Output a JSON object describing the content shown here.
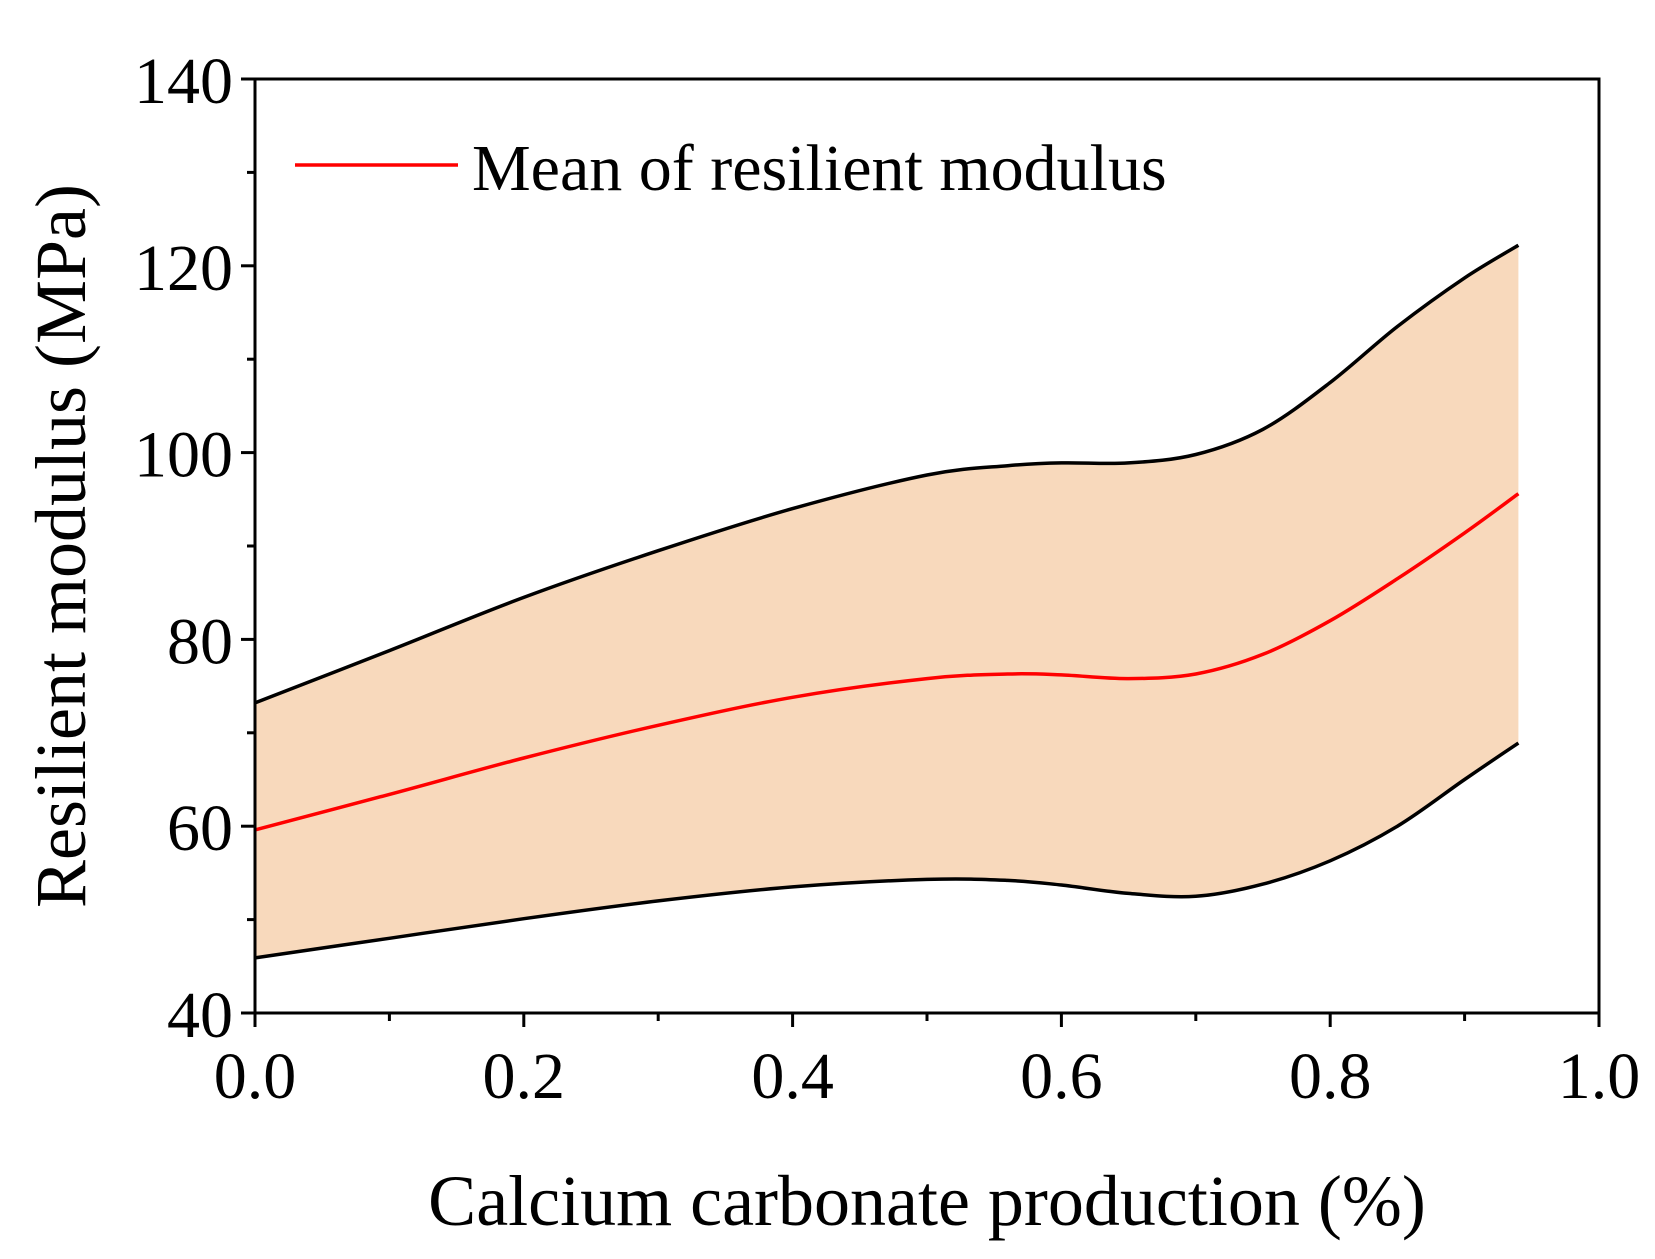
{
  "chart_data": {
    "type": "area",
    "title": "",
    "xlabel": "Calcium carbonate production (%)",
    "ylabel": "Resilient modulus (MPa)",
    "xlim": [
      0.0,
      1.0
    ],
    "ylim": [
      40,
      140
    ],
    "x_ticks": [
      0.0,
      0.2,
      0.4,
      0.6,
      0.8,
      1.0
    ],
    "x_tick_labels": [
      "0.0",
      "0.2",
      "0.4",
      "0.6",
      "0.8",
      "1.0"
    ],
    "y_ticks": [
      40,
      60,
      80,
      100,
      120,
      140
    ],
    "y_tick_labels": [
      "40",
      "60",
      "80",
      "100",
      "120",
      "140"
    ],
    "grid": false,
    "legend": {
      "placement": "top-left",
      "entries": [
        {
          "label": "Mean of resilient modulus",
          "color": "#ff0000"
        }
      ]
    },
    "colors": {
      "band_fill": "#f8d9bc",
      "bound_line": "#000000",
      "mean_line": "#ff0000",
      "axis": "#000000"
    },
    "x": [
      0.0,
      0.1,
      0.2,
      0.3,
      0.4,
      0.5,
      0.56,
      0.6,
      0.65,
      0.7,
      0.75,
      0.8,
      0.85,
      0.9,
      0.94
    ],
    "series": [
      {
        "name": "Upper bound",
        "values": [
          73.2,
          78.8,
          84.5,
          89.5,
          94.0,
          97.6,
          98.6,
          98.9,
          98.9,
          99.8,
          102.5,
          107.5,
          113.5,
          118.7,
          122.2
        ]
      },
      {
        "name": "Mean of resilient modulus",
        "values": [
          59.6,
          63.4,
          67.3,
          70.8,
          73.8,
          75.8,
          76.3,
          76.2,
          75.8,
          76.3,
          78.4,
          82.0,
          86.5,
          91.4,
          95.6
        ]
      },
      {
        "name": "Lower bound",
        "values": [
          45.9,
          48.0,
          50.1,
          52.0,
          53.5,
          54.3,
          54.2,
          53.7,
          52.8,
          52.5,
          53.8,
          56.3,
          60.0,
          65.0,
          68.9
        ]
      }
    ]
  }
}
